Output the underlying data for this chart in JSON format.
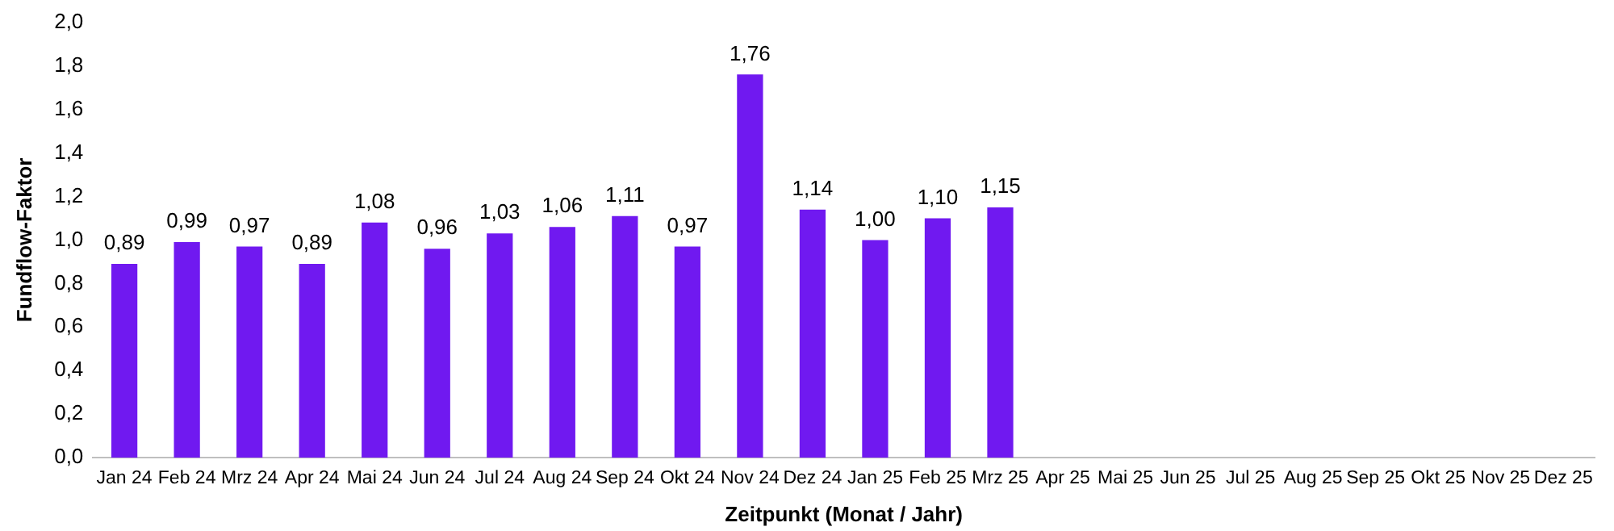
{
  "chart_data": {
    "type": "bar",
    "xlabel": "Zeitpunkt (Monat / Jahr)",
    "ylabel": "Fundflow-Faktor",
    "categories": [
      "Jan 24",
      "Feb 24",
      "Mrz 24",
      "Apr 24",
      "Mai 24",
      "Jun 24",
      "Jul 24",
      "Aug 24",
      "Sep 24",
      "Okt 24",
      "Nov 24",
      "Dez 24",
      "Jan 25",
      "Feb 25",
      "Mrz 25",
      "Apr 25",
      "Mai 25",
      "Jun 25",
      "Jul 25",
      "Aug 25",
      "Sep 25",
      "Okt 25",
      "Nov 25",
      "Dez 25"
    ],
    "values": [
      0.89,
      0.99,
      0.97,
      0.89,
      1.08,
      0.96,
      1.03,
      1.06,
      1.11,
      0.97,
      1.76,
      1.14,
      1.0,
      1.1,
      1.15,
      null,
      null,
      null,
      null,
      null,
      null,
      null,
      null,
      null
    ],
    "value_labels": [
      "0,89",
      "0,99",
      "0,97",
      "0,89",
      "1,08",
      "0,96",
      "1,03",
      "1,06",
      "1,11",
      "0,97",
      "1,76",
      "1,14",
      "1,00",
      "1,10",
      "1,15",
      null,
      null,
      null,
      null,
      null,
      null,
      null,
      null,
      null
    ],
    "color": "#7019f0",
    "ylim": [
      0,
      2
    ],
    "yticks": [
      {
        "value": 0,
        "label": "0,0"
      },
      {
        "value": 0.2,
        "label": "0,2"
      },
      {
        "value": 0.4,
        "label": "0,4"
      },
      {
        "value": 0.6,
        "label": "0,6"
      },
      {
        "value": 0.8,
        "label": "0,8"
      },
      {
        "value": 1,
        "label": "1,0"
      },
      {
        "value": 1.2,
        "label": "1,2"
      },
      {
        "value": 1.4,
        "label": "1,4"
      },
      {
        "value": 1.6,
        "label": "1,6"
      },
      {
        "value": 1.8,
        "label": "1,8"
      },
      {
        "value": 2,
        "label": "2,0"
      }
    ],
    "grid": false,
    "legend": false
  }
}
